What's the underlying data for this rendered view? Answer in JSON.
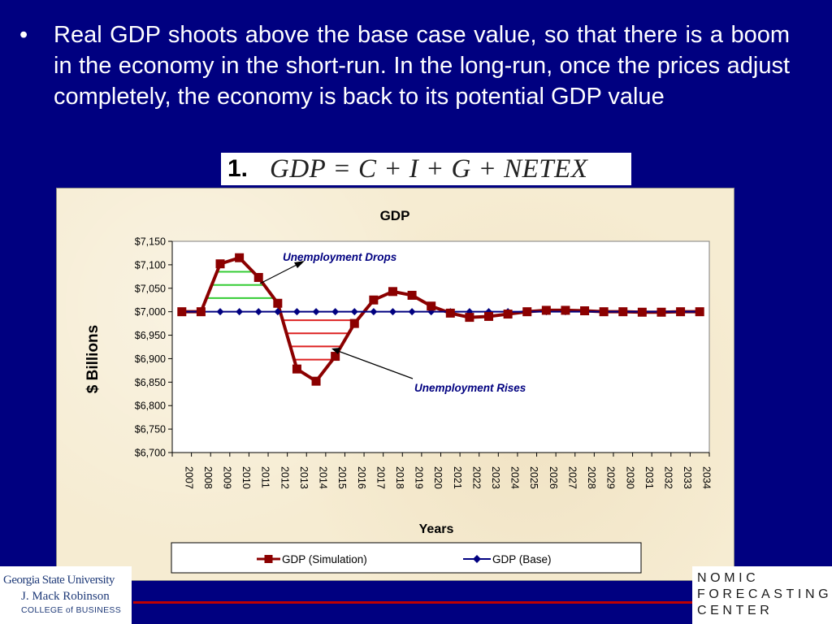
{
  "slide": {
    "bullet_symbol": "•",
    "bullet_text": "Real GDP shoots above the base case value, so that there is a boom in the economy in the short-run. In the long-run, once the prices adjust completely, the economy is back to its potential GDP value",
    "formula_number": "1.",
    "formula": "GDP = C + I + G + NETEX"
  },
  "chart_data": {
    "type": "line",
    "title": "GDP",
    "xlabel": "Years",
    "ylabel": "$ Billions",
    "x": [
      "2007",
      "2008",
      "2009",
      "2010",
      "2011",
      "2012",
      "2013",
      "2014",
      "2015",
      "2016",
      "2017",
      "2018",
      "2019",
      "2020",
      "2021",
      "2022",
      "2023",
      "2024",
      "2025",
      "2026",
      "2027",
      "2028",
      "2029",
      "2030",
      "2031",
      "2032",
      "2033",
      "2034"
    ],
    "ylim": [
      6700,
      7150
    ],
    "yticks": [
      6700,
      6750,
      6800,
      6850,
      6900,
      6950,
      7000,
      7050,
      7100,
      7150
    ],
    "ytick_labels": [
      "$6,700",
      "$6,750",
      "$6,800",
      "$6,850",
      "$6,900",
      "$6,950",
      "$7,000",
      "$7,050",
      "$7,100",
      "$7,150"
    ],
    "series": [
      {
        "name": "GDP (Simulation)",
        "color": "#8b0000",
        "marker": "square",
        "values": [
          7000,
          7000,
          7102,
          7115,
          7073,
          7018,
          6878,
          6852,
          6905,
          6975,
          7025,
          7043,
          7035,
          7012,
          6997,
          6988,
          6990,
          6995,
          7000,
          7003,
          7003,
          7002,
          7000,
          7000,
          6999,
          6999,
          7000,
          7000
        ]
      },
      {
        "name": "GDP (Base)",
        "color": "#000080",
        "marker": "diamond",
        "values": [
          7000,
          7000,
          7000,
          7000,
          7000,
          7000,
          7000,
          7000,
          7000,
          7000,
          7000,
          7000,
          7000,
          7000,
          7000,
          7000,
          7000,
          7000,
          7000,
          7000,
          7000,
          7000,
          7000,
          7000,
          7000,
          7000,
          7000,
          7000
        ]
      }
    ],
    "annotations": [
      {
        "text": "Unemployment Drops",
        "color": "#000080"
      },
      {
        "text": "Unemployment Rises",
        "color": "#000080"
      }
    ],
    "highlight_colors": {
      "boom": "#33cc33",
      "recession": "#dd2222"
    },
    "grid": false,
    "legend_position": "bottom"
  },
  "footer": {
    "left_logo": {
      "line1": "Georgia State University",
      "line2": "J. Mack Robinson",
      "line3": "COLLEGE of BUSINESS"
    },
    "right_logo": {
      "line1": "NOMIC",
      "line2": "FORECASTING",
      "line3": "CENTER"
    },
    "line_color": "#c00000"
  }
}
